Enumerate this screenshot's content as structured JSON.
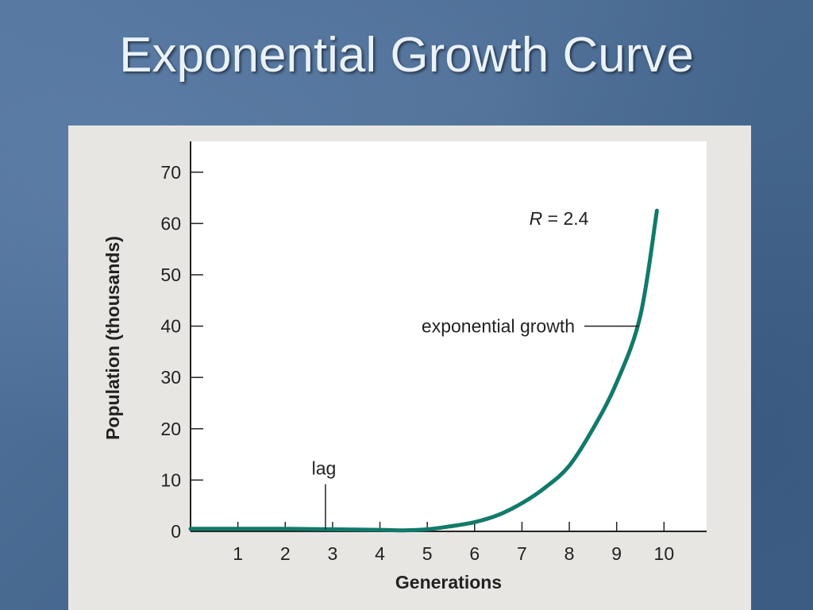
{
  "slide": {
    "title": "Exponential Growth Curve"
  },
  "colors": {
    "curve": "#117a6a",
    "axis": "#222222",
    "plot_bg": "#ffffff",
    "panel_bg": "#e8e6e3",
    "slide_bg": "#4a6d95",
    "title_text": "#e9f2ff"
  },
  "chart_data": {
    "type": "line",
    "title": "",
    "xlabel": "Generations",
    "ylabel": "Population (thousands)",
    "xlim": [
      0,
      10.9
    ],
    "ylim": [
      0,
      76
    ],
    "x_ticks": [
      1,
      2,
      3,
      4,
      5,
      6,
      7,
      8,
      9,
      10
    ],
    "y_ticks": [
      0,
      10,
      20,
      30,
      40,
      50,
      60,
      70
    ],
    "grid": false,
    "legend": "none",
    "series": [
      {
        "x": [
          0,
          1,
          2,
          3,
          4,
          4.5,
          5,
          5.5,
          6,
          6.5,
          7,
          7.5,
          8,
          8.5,
          9,
          9.5,
          9.85
        ],
        "y": [
          0.5,
          0.5,
          0.5,
          0.4,
          0.3,
          0.2,
          0.4,
          1.0,
          1.8,
          3.2,
          5.5,
          8.6,
          12.8,
          20.0,
          29.0,
          42.0,
          62.5
        ]
      }
    ],
    "annotations": [
      {
        "id": "lag",
        "text": "lag",
        "x": 2.85,
        "y": 9.5
      },
      {
        "id": "exponential",
        "text": "exponential growth",
        "x": 9.5,
        "y": 40
      },
      {
        "id": "rate",
        "prefix": "R",
        "text": " = 2.4",
        "x": 9.1,
        "y": 61
      }
    ]
  }
}
